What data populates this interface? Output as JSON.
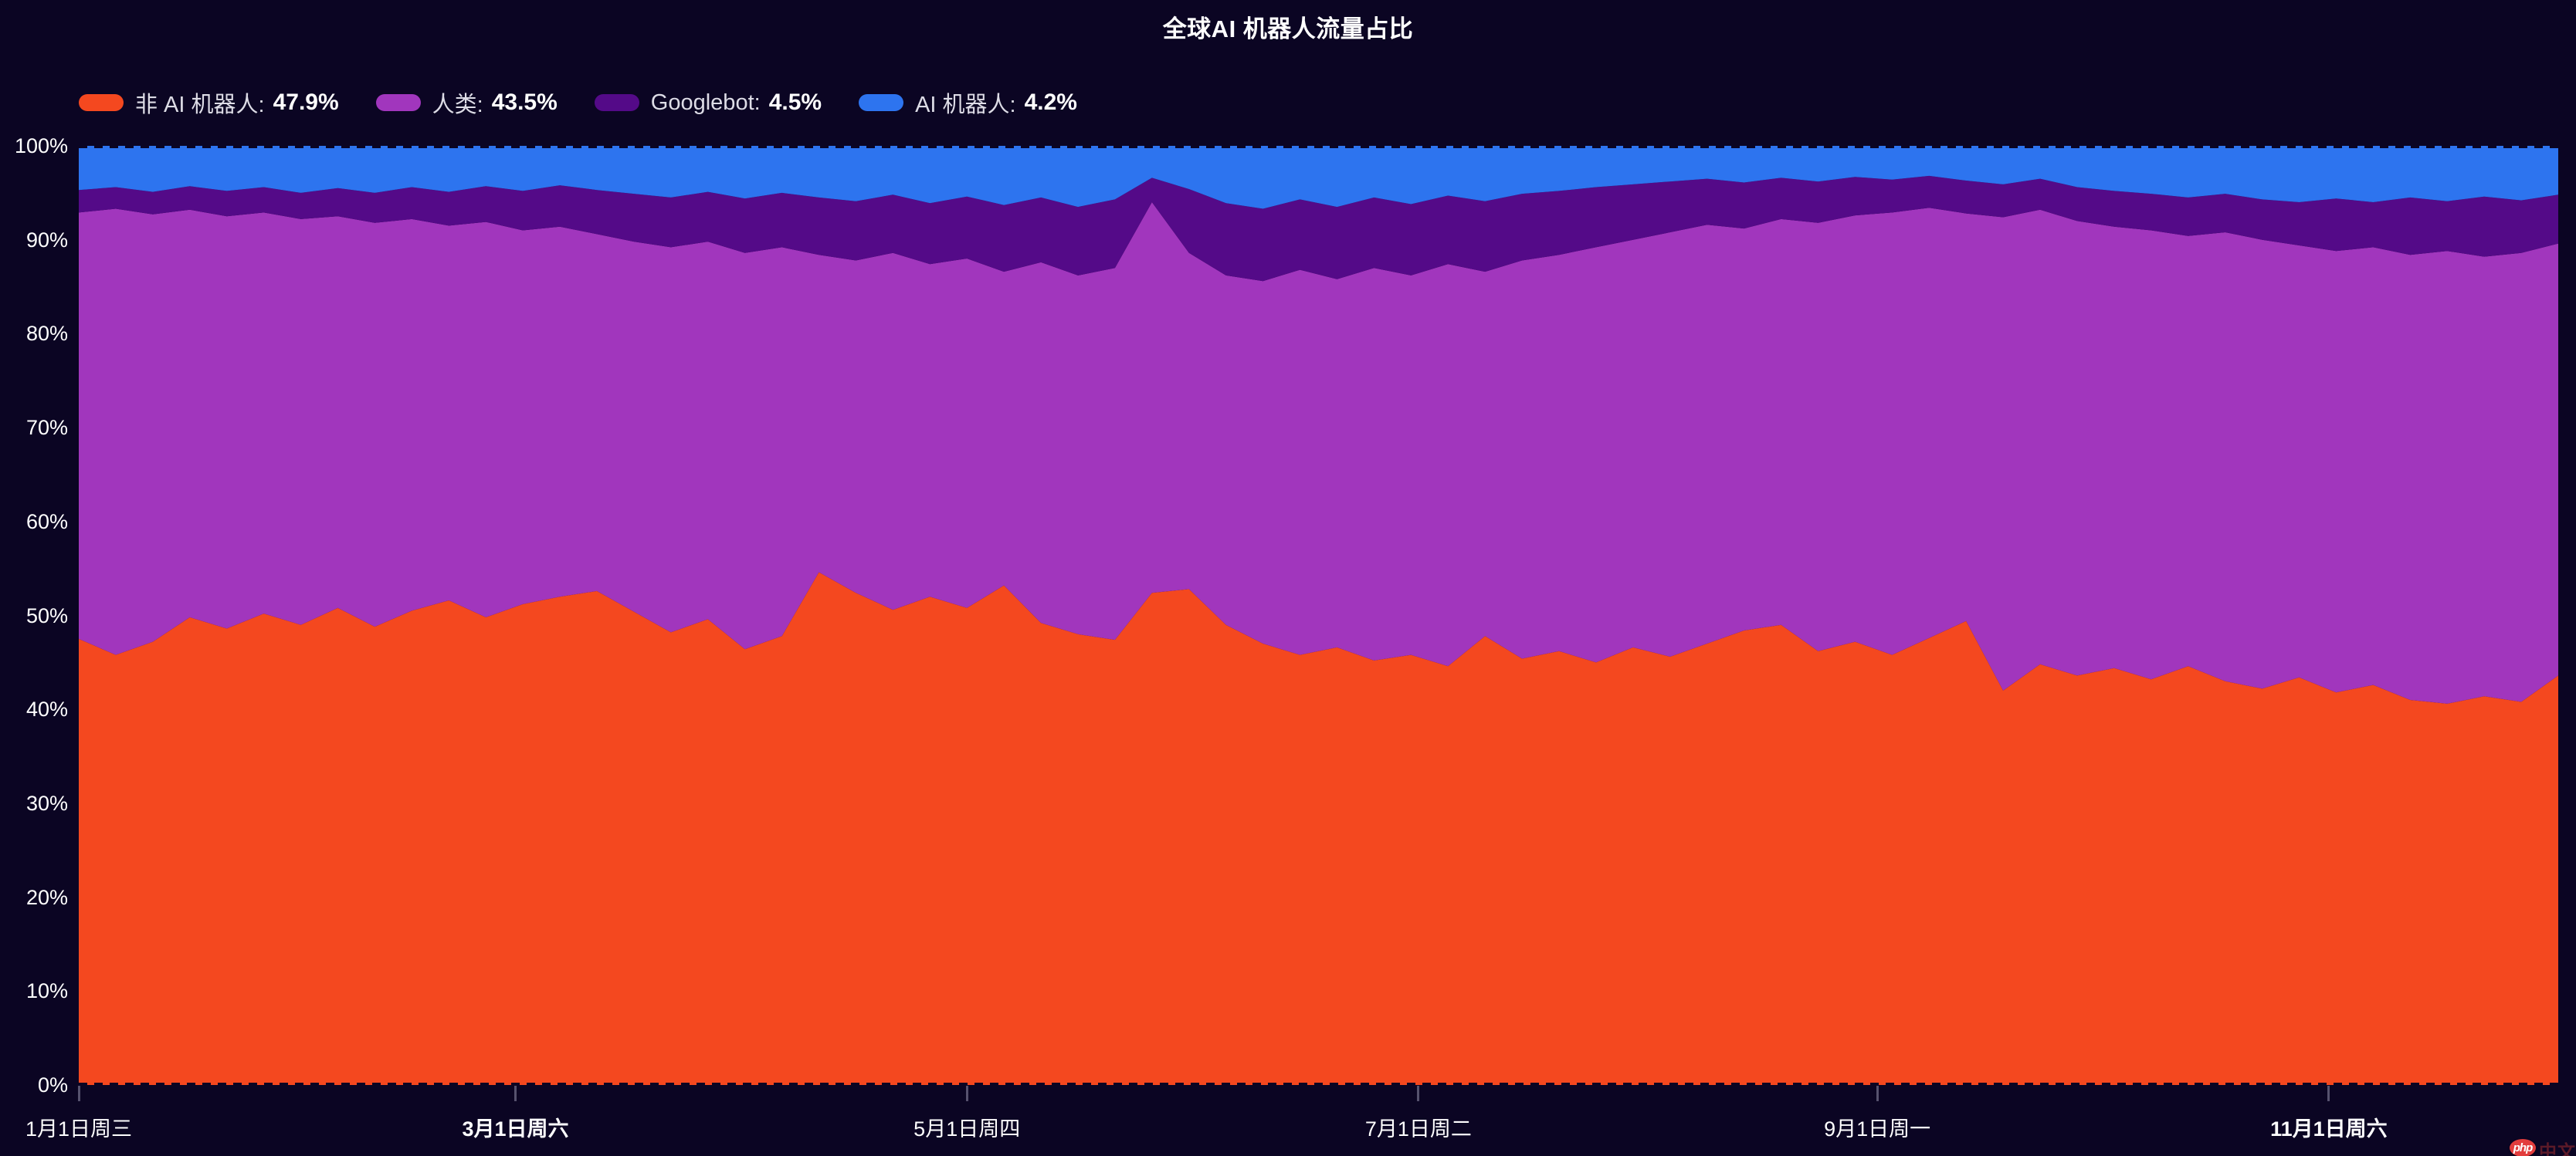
{
  "title": "全球AI 机器人流量占比",
  "colors": {
    "background": "#0b0523",
    "text_primary": "#ffffff",
    "text_secondary": "#dddce6",
    "axis_tick": "#56526e",
    "watermark_badge": "#e23d3d",
    "watermark_text": "#5c1a28"
  },
  "legend": {
    "items": [
      {
        "label": "非 AI 机器人:",
        "value": "47.9%",
        "color": "#f4481f"
      },
      {
        "label": "人类:",
        "value": "43.5%",
        "color": "#a136bd"
      },
      {
        "label": "Googlebot:",
        "value": "4.5%",
        "color": "#540a88"
      },
      {
        "label": "AI 机器人:",
        "value": "4.2%",
        "color": "#2d74ef"
      }
    ]
  },
  "watermark": {
    "badge_text": "php",
    "site_text": "中文网"
  },
  "chart_data": {
    "type": "area",
    "stacked": true,
    "unit": "%",
    "ylim": [
      0,
      100
    ],
    "grid": "dashed lines at 0% and 100% in background color",
    "legend_position": "top-left",
    "sample_step_days": 5,
    "days_span": 335,
    "y_ticks": [
      "0%",
      "10%",
      "20%",
      "30%",
      "40%",
      "50%",
      "60%",
      "70%",
      "80%",
      "90%",
      "100%"
    ],
    "x_ticks": [
      {
        "label": "1月1日周三",
        "day": 0,
        "bold": false
      },
      {
        "label": "3月1日周六",
        "day": 59,
        "bold": true
      },
      {
        "label": "5月1日周四",
        "day": 120,
        "bold": false
      },
      {
        "label": "7月1日周二",
        "day": 181,
        "bold": false
      },
      {
        "label": "9月1日周一",
        "day": 243,
        "bold": false
      },
      {
        "label": "11月1日周六",
        "day": 304,
        "bold": true
      }
    ],
    "series": [
      {
        "name": "非 AI 机器人",
        "color": "#f4481f",
        "avg_label": "47.9%",
        "values": [
          47.5,
          45.8,
          47.2,
          49.8,
          48.6,
          50.2,
          49.0,
          50.8,
          48.8,
          50.5,
          51.6,
          49.8,
          51.2,
          52.0,
          52.6,
          50.4,
          48.2,
          49.6,
          46.4,
          47.8,
          54.6,
          52.4,
          50.6,
          52.0,
          50.8,
          53.2,
          49.2,
          48.0,
          47.4,
          52.4,
          52.8,
          49.0,
          47.0,
          45.8,
          46.6,
          45.2,
          45.8,
          44.6,
          47.8,
          45.4,
          46.2,
          45.0,
          46.6,
          45.6,
          47.0,
          48.4,
          49.0,
          46.2,
          47.2,
          45.8,
          47.6,
          49.4,
          42.0,
          44.8,
          43.6,
          44.4,
          43.2,
          44.6,
          43.0,
          42.2,
          43.4,
          41.8,
          42.6,
          41.0,
          40.6,
          41.4,
          40.8,
          43.6
        ]
      },
      {
        "name": "人类",
        "color": "#a136bd",
        "avg_label": "43.5%",
        "values": [
          45.4,
          47.5,
          45.5,
          43.4,
          43.9,
          42.7,
          43.2,
          41.7,
          43.0,
          41.7,
          39.9,
          42.1,
          39.8,
          39.4,
          38.0,
          39.4,
          41.0,
          40.2,
          42.2,
          41.4,
          33.8,
          35.4,
          38.0,
          35.4,
          37.2,
          33.4,
          38.4,
          38.2,
          39.6,
          41.6,
          35.8,
          37.2,
          38.6,
          41.0,
          39.2,
          41.8,
          40.4,
          42.8,
          38.8,
          42.4,
          42.2,
          44.2,
          43.4,
          45.2,
          44.6,
          42.8,
          43.2,
          45.6,
          45.4,
          47.1,
          45.8,
          43.4,
          50.4,
          48.4,
          48.4,
          47.0,
          47.8,
          45.8,
          47.8,
          47.8,
          46.0,
          47.0,
          46.6,
          47.4,
          48.2,
          46.8,
          47.8,
          46.0
        ]
      },
      {
        "name": "Googlebot",
        "color": "#540a88",
        "avg_label": "4.5%",
        "values": [
          2.4,
          2.3,
          2.4,
          2.5,
          2.7,
          2.7,
          2.8,
          3.0,
          3.2,
          3.4,
          3.6,
          3.8,
          4.2,
          4.4,
          4.7,
          5.1,
          5.3,
          5.3,
          5.8,
          5.8,
          6.1,
          6.3,
          6.2,
          6.5,
          6.6,
          7.1,
          6.9,
          7.3,
          7.3,
          2.6,
          6.8,
          7.7,
          7.7,
          7.5,
          7.7,
          7.5,
          7.6,
          7.3,
          7.5,
          7.1,
          6.8,
          6.4,
          5.9,
          5.4,
          4.9,
          4.9,
          4.4,
          4.4,
          4.1,
          3.5,
          3.4,
          3.5,
          3.5,
          3.3,
          3.6,
          3.8,
          3.9,
          4.1,
          4.1,
          4.3,
          4.6,
          5.6,
          4.8,
          6.1,
          5.3,
          6.4,
          5.6,
          5.2
        ]
      },
      {
        "name": "AI 机器人",
        "color": "#2d74ef",
        "avg_label": "4.2%",
        "values": [
          4.7,
          4.4,
          4.9,
          4.3,
          4.8,
          4.4,
          5.0,
          4.5,
          5.0,
          4.4,
          4.9,
          4.3,
          4.8,
          4.2,
          4.7,
          5.1,
          5.5,
          4.9,
          5.6,
          5.0,
          5.5,
          5.9,
          5.2,
          6.1,
          5.4,
          6.3,
          5.5,
          6.5,
          5.7,
          3.4,
          4.6,
          6.1,
          6.7,
          5.7,
          6.5,
          5.5,
          6.2,
          5.3,
          5.9,
          5.1,
          4.8,
          4.4,
          4.1,
          3.8,
          3.5,
          3.9,
          3.4,
          3.8,
          3.3,
          3.6,
          3.2,
          3.7,
          4.1,
          3.5,
          4.4,
          4.8,
          5.1,
          5.5,
          5.1,
          5.7,
          6.0,
          5.6,
          6.0,
          5.5,
          5.9,
          5.4,
          5.8,
          5.2
        ]
      }
    ]
  }
}
